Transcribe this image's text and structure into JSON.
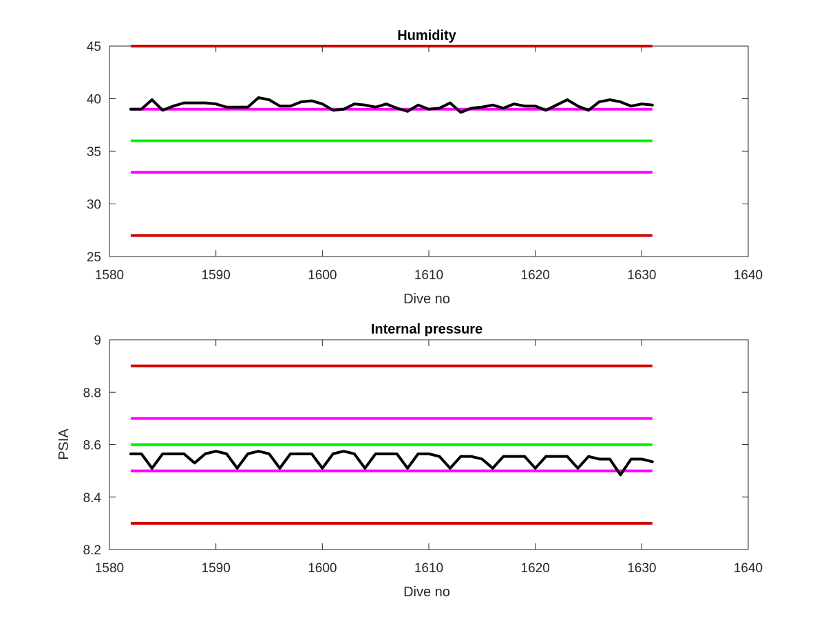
{
  "chart_data": [
    {
      "type": "line",
      "title": "Humidity",
      "xlabel": "Dive no",
      "ylabel": "",
      "xlim": [
        1580,
        1640
      ],
      "ylim": [
        25,
        45
      ],
      "xticks": [
        1580,
        1590,
        1600,
        1610,
        1620,
        1630,
        1640
      ],
      "yticks": [
        25,
        30,
        35,
        40,
        45
      ],
      "grid": false,
      "reference_lines": [
        {
          "y": 45,
          "x_range": [
            1582,
            1631
          ],
          "color": "#d10000"
        },
        {
          "y": 39,
          "x_range": [
            1582,
            1631
          ],
          "color": "#ff00ff"
        },
        {
          "y": 36,
          "x_range": [
            1582,
            1631
          ],
          "color": "#00ee00"
        },
        {
          "y": 33,
          "x_range": [
            1582,
            1631
          ],
          "color": "#ff00ff"
        },
        {
          "y": 27,
          "x_range": [
            1582,
            1631
          ],
          "color": "#d10000"
        }
      ],
      "series": [
        {
          "color": "#000000",
          "x": [
            1582,
            1583,
            1584,
            1585,
            1586,
            1587,
            1588,
            1589,
            1590,
            1591,
            1592,
            1593,
            1594,
            1595,
            1596,
            1597,
            1598,
            1599,
            1600,
            1601,
            1602,
            1603,
            1604,
            1605,
            1606,
            1607,
            1608,
            1609,
            1610,
            1611,
            1612,
            1613,
            1614,
            1615,
            1616,
            1617,
            1618,
            1619,
            1620,
            1621,
            1622,
            1623,
            1624,
            1625,
            1626,
            1627,
            1628,
            1629,
            1630,
            1631
          ],
          "y": [
            39.0,
            39.0,
            39.9,
            38.9,
            39.3,
            39.6,
            39.6,
            39.6,
            39.5,
            39.2,
            39.2,
            39.2,
            40.1,
            39.9,
            39.3,
            39.3,
            39.7,
            39.8,
            39.5,
            38.9,
            39.0,
            39.5,
            39.4,
            39.2,
            39.5,
            39.1,
            38.8,
            39.4,
            39.0,
            39.1,
            39.6,
            38.7,
            39.1,
            39.2,
            39.4,
            39.1,
            39.5,
            39.3,
            39.3,
            38.9,
            39.4,
            39.9,
            39.3,
            38.9,
            39.7,
            39.9,
            39.7,
            39.3,
            39.5,
            39.4
          ]
        }
      ]
    },
    {
      "type": "line",
      "title": "Internal pressure",
      "xlabel": "Dive no",
      "ylabel": "PSIA",
      "xlim": [
        1580,
        1640
      ],
      "ylim": [
        8.2,
        9.0
      ],
      "xticks": [
        1580,
        1590,
        1600,
        1610,
        1620,
        1630,
        1640
      ],
      "yticks": [
        8.2,
        8.4,
        8.6,
        8.8,
        9.0
      ],
      "yticklabels": [
        "8.2",
        "8.4",
        "8.6",
        "8.8",
        "9"
      ],
      "grid": false,
      "reference_lines": [
        {
          "y": 8.9,
          "x_range": [
            1582,
            1631
          ],
          "color": "#d10000"
        },
        {
          "y": 8.7,
          "x_range": [
            1582,
            1631
          ],
          "color": "#ff00ff"
        },
        {
          "y": 8.6,
          "x_range": [
            1582,
            1631
          ],
          "color": "#00ee00"
        },
        {
          "y": 8.5,
          "x_range": [
            1582,
            1631
          ],
          "color": "#ff00ff"
        },
        {
          "y": 8.3,
          "x_range": [
            1582,
            1631
          ],
          "color": "#d10000"
        }
      ],
      "series": [
        {
          "color": "#000000",
          "x": [
            1582,
            1583,
            1584,
            1585,
            1586,
            1587,
            1588,
            1589,
            1590,
            1591,
            1592,
            1593,
            1594,
            1595,
            1596,
            1597,
            1598,
            1599,
            1600,
            1601,
            1602,
            1603,
            1604,
            1605,
            1606,
            1607,
            1608,
            1609,
            1610,
            1611,
            1612,
            1613,
            1614,
            1615,
            1616,
            1617,
            1618,
            1619,
            1620,
            1621,
            1622,
            1623,
            1624,
            1625,
            1626,
            1627,
            1628,
            1629,
            1630,
            1631
          ],
          "y": [
            8.565,
            8.565,
            8.51,
            8.565,
            8.565,
            8.565,
            8.53,
            8.565,
            8.575,
            8.565,
            8.51,
            8.565,
            8.575,
            8.565,
            8.51,
            8.565,
            8.565,
            8.565,
            8.51,
            8.565,
            8.575,
            8.565,
            8.51,
            8.565,
            8.565,
            8.565,
            8.51,
            8.565,
            8.565,
            8.555,
            8.51,
            8.555,
            8.555,
            8.545,
            8.51,
            8.555,
            8.555,
            8.555,
            8.51,
            8.555,
            8.555,
            8.555,
            8.51,
            8.555,
            8.545,
            8.545,
            8.485,
            8.545,
            8.545,
            8.535
          ]
        }
      ]
    }
  ]
}
